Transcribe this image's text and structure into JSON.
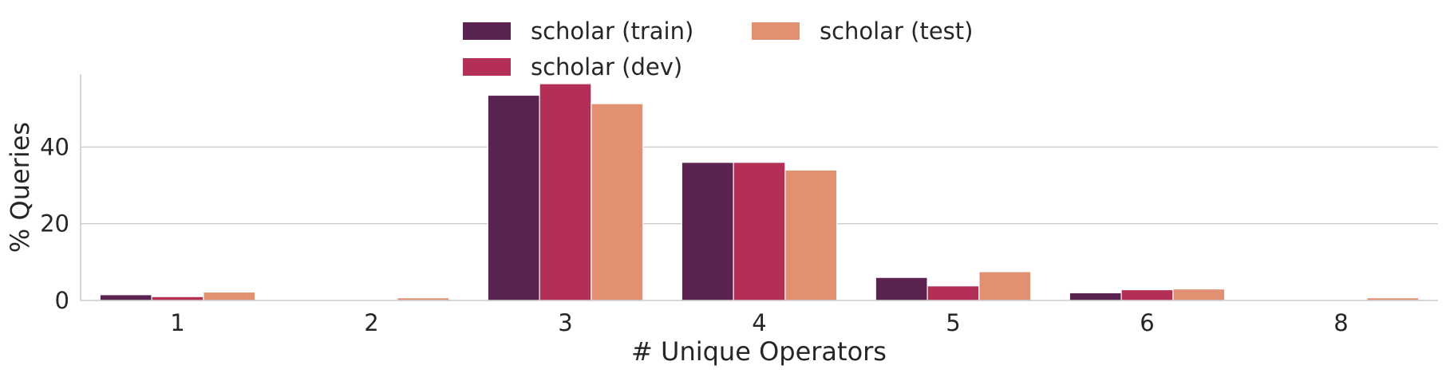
{
  "chart_data": {
    "type": "bar",
    "title": "",
    "xlabel": "# Unique Operators",
    "ylabel": "% Queries",
    "categories": [
      "1",
      "2",
      "3",
      "4",
      "5",
      "6",
      "8"
    ],
    "ylim": [
      0,
      59
    ],
    "yticks": [
      0,
      20,
      40
    ],
    "grid": "horizontal",
    "legend_position": "top-center",
    "series": [
      {
        "name": "scholar (train)",
        "color": "#5b2350",
        "values": [
          1.5,
          0,
          53.5,
          36,
          6,
          2,
          0
        ]
      },
      {
        "name": "scholar (dev)",
        "color": "#b32f55",
        "values": [
          1.0,
          0,
          56.5,
          36,
          3.8,
          2.8,
          0
        ]
      },
      {
        "name": "scholar (test)",
        "color": "#e19171",
        "values": [
          2.2,
          0.7,
          51.3,
          34,
          7.5,
          3.0,
          0.7
        ]
      }
    ]
  }
}
